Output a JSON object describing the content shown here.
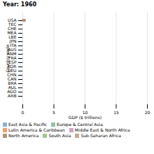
{
  "chart_data": {
    "type": "bar",
    "orientation": "horizontal",
    "title": "Year: 1960",
    "xlabel": "GDP ($ trillions)",
    "ylabel": "Country code",
    "categories": [
      "USA",
      "TEC",
      "CHE",
      "MEA",
      "LBE",
      "JPN",
      "ITA",
      "AUS",
      "ANM",
      "FRA",
      "ESP",
      "KOR",
      "DEU",
      "CHN",
      "CAN",
      "BRA",
      "AUL",
      "AGO",
      "ARB"
    ],
    "values": [
      0.54,
      0.0,
      0.0,
      0.0,
      0.0,
      0.044,
      0.04,
      0.04,
      0.044,
      0.06,
      0.015,
      0.004,
      0.0,
      0.0,
      0.014,
      0.015,
      0.018,
      0.004,
      0.0
    ],
    "colors": [
      "#b5927a",
      "#e5e5e5",
      "#e5e5e5",
      "#90c4a8",
      "#e5e5e5",
      "#8ab4d4",
      "#8ab4d4",
      "#8ab4d4",
      "#6699cc",
      "#8ab4d4",
      "#8ab4d4",
      "#e5e5e5",
      "#e5e5e5",
      "#e5e5e5",
      "#e5e5e5",
      "#e5e5e5",
      "#c9a89a",
      "#c9a89a",
      "#e5e5e5"
    ],
    "xlim": [
      0,
      20
    ],
    "xticks": [
      0,
      5,
      10,
      15,
      20
    ],
    "grid": true,
    "legend": "lower left",
    "legend_entries": [
      {
        "name": "East Asia & Pacific",
        "color": "#8ab4d4"
      },
      {
        "name": "Europe & Central Asia",
        "color": "#90c4a8"
      },
      {
        "name": "Latin America & Caribbean",
        "color": "#f0a070"
      },
      {
        "name": "Middle East & North Africa",
        "color": "#d4a0c0"
      },
      {
        "name": "North America",
        "color": "#b5927a"
      },
      {
        "name": "South Asia",
        "color": "#a0c890"
      },
      {
        "name": "Sub-Saharan Africa",
        "color": "#c9a89a"
      }
    ]
  }
}
